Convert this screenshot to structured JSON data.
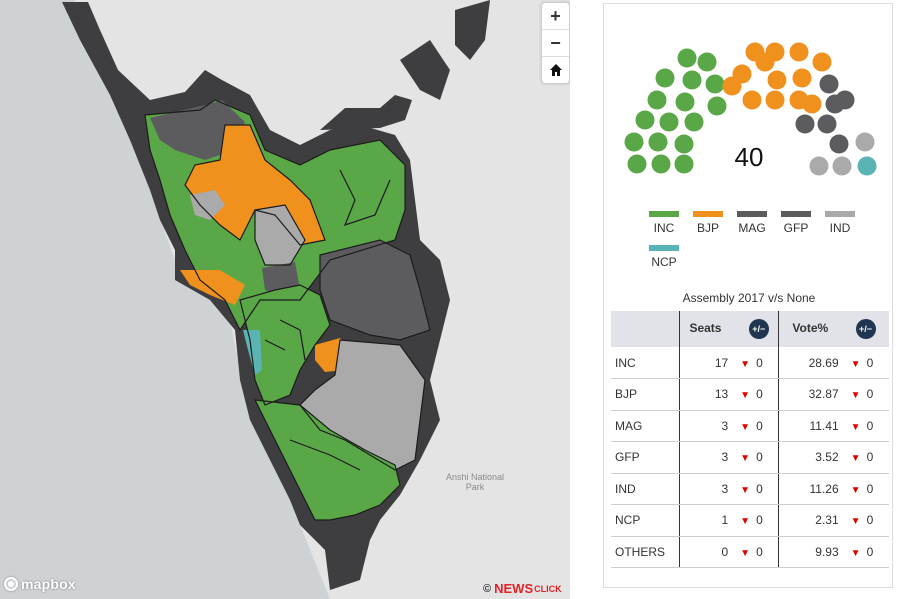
{
  "map": {
    "labels": {
      "park": "Anshi National\nPark"
    },
    "zoom_in": "+",
    "zoom_out": "−",
    "home_icon": "home-icon",
    "attribution": "mapbox",
    "credit": {
      "prefix": "©",
      "news": "NEWS",
      "click": "CLICK"
    }
  },
  "seats_chart": {
    "total": "40"
  },
  "colors": {
    "INC": "#5aa747",
    "BJP": "#f0911d",
    "MAG": "#5c5c5e",
    "GFP": "#5c5c5e",
    "IND": "#aaaaaa",
    "NCP": "#5ab4b4"
  },
  "legend": [
    {
      "label": "INC",
      "color": "#5aa747"
    },
    {
      "label": "BJP",
      "color": "#f0911d"
    },
    {
      "label": "MAG",
      "color": "#5c5c5e"
    },
    {
      "label": "GFP",
      "color": "#5c5c5e"
    },
    {
      "label": "IND",
      "color": "#aaaaaa"
    },
    {
      "label": "NCP",
      "color": "#5ab4b4"
    }
  ],
  "table": {
    "title": "Assembly 2017 v/s None",
    "headers": {
      "seats": "Seats",
      "vote": "Vote%",
      "toggle": "+/−"
    },
    "rows": [
      {
        "party": "INC",
        "seats": "17",
        "seats_change": "0",
        "vote": "28.69",
        "vote_change": "0"
      },
      {
        "party": "BJP",
        "seats": "13",
        "seats_change": "0",
        "vote": "32.87",
        "vote_change": "0"
      },
      {
        "party": "MAG",
        "seats": "3",
        "seats_change": "0",
        "vote": "11.41",
        "vote_change": "0"
      },
      {
        "party": "GFP",
        "seats": "3",
        "seats_change": "0",
        "vote": "3.52",
        "vote_change": "0"
      },
      {
        "party": "IND",
        "seats": "3",
        "seats_change": "0",
        "vote": "11.26",
        "vote_change": "0"
      },
      {
        "party": "NCP",
        "seats": "1",
        "seats_change": "0",
        "vote": "2.31",
        "vote_change": "0"
      },
      {
        "party": "OTHERS",
        "seats": "0",
        "seats_change": "0",
        "vote": "9.93",
        "vote_change": "0"
      }
    ]
  }
}
